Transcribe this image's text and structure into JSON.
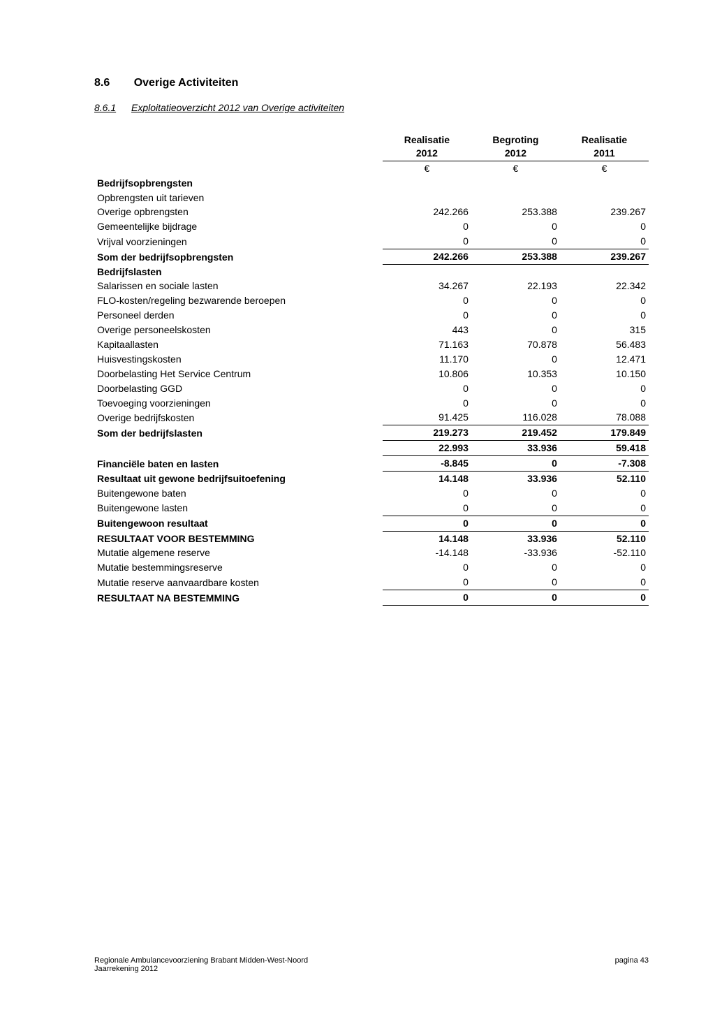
{
  "section": {
    "number": "8.6",
    "title": "Overige Activiteiten"
  },
  "subsection": {
    "number": "8.6.1",
    "title": "Exploitatieoverzicht 2012 van Overige activiteiten"
  },
  "columns": [
    {
      "head1": "Realisatie",
      "head2": "2012",
      "currency": "€"
    },
    {
      "head1": "Begroting",
      "head2": "2012",
      "currency": "€"
    },
    {
      "head1": "Realisatie",
      "head2": "2011",
      "currency": "€"
    }
  ],
  "labels": {
    "bedrijfsopbrengsten": "Bedrijfsopbrengsten",
    "opbr_tarieven": "Opbrengsten uit tarieven",
    "overige_opbrengsten": "Overige opbrengsten",
    "gemeentelijke_bijdrage": "Gemeentelijke bijdrage",
    "vrijval_voorz": "Vrijval voorzieningen",
    "som_opbrengsten": "Som der bedrijfsopbrengsten",
    "bedrijfslasten": "Bedrijfslasten",
    "salarissen": "Salarissen en sociale lasten",
    "flo": "FLO-kosten/regeling bezwarende beroepen",
    "personeel_derden": "Personeel derden",
    "overige_personeel": "Overige personeelskosten",
    "kapitaallasten": "Kapitaallasten",
    "huisvest": "Huisvestingskosten",
    "doorbel_hsc": "Doorbelasting Het Service Centrum",
    "doorbel_ggd": "Doorbelasting GGD",
    "toevoeging_voorz": "Toevoeging voorzieningen",
    "overige_bedrijfskosten": "Overige bedrijfskosten",
    "som_lasten": "Som der bedrijfslasten",
    "fin_baten": "Financiële baten en lasten",
    "resultaat_gewone": "Resultaat uit gewone bedrijfsuitoefening",
    "buitengewone_baten": "Buitengewone baten",
    "buitengewone_lasten": "Buitengewone lasten",
    "buitengewoon_resultaat": "Buitengewoon resultaat",
    "resultaat_voor": "RESULTAAT VOOR BESTEMMING",
    "mut_alg": "Mutatie algemene reserve",
    "mut_best": "Mutatie bestemmingsreserve",
    "mut_aanv": "Mutatie reserve aanvaardbare kosten",
    "resultaat_na": "RESULTAAT NA BESTEMMING"
  },
  "values": {
    "overige_opbrengsten": [
      "242.266",
      "253.388",
      "239.267"
    ],
    "gemeentelijke_bijdrage": [
      "0",
      "0",
      "0"
    ],
    "vrijval_voorz": [
      "0",
      "0",
      "0"
    ],
    "som_opbrengsten": [
      "242.266",
      "253.388",
      "239.267"
    ],
    "salarissen": [
      "34.267",
      "22.193",
      "22.342"
    ],
    "flo": [
      "0",
      "0",
      "0"
    ],
    "personeel_derden": [
      "0",
      "0",
      "0"
    ],
    "overige_personeel": [
      "443",
      "0",
      "315"
    ],
    "kapitaallasten": [
      "71.163",
      "70.878",
      "56.483"
    ],
    "huisvest": [
      "11.170",
      "0",
      "12.471"
    ],
    "doorbel_hsc": [
      "10.806",
      "10.353",
      "10.150"
    ],
    "doorbel_ggd": [
      "0",
      "0",
      "0"
    ],
    "toevoeging_voorz": [
      "0",
      "0",
      "0"
    ],
    "overige_bedrijfskosten": [
      "91.425",
      "116.028",
      "78.088"
    ],
    "som_lasten": [
      "219.273",
      "219.452",
      "179.849"
    ],
    "subtotal_diff": [
      "22.993",
      "33.936",
      "59.418"
    ],
    "fin_baten": [
      "-8.845",
      "0",
      "-7.308"
    ],
    "resultaat_gewone": [
      "14.148",
      "33.936",
      "52.110"
    ],
    "buitengewone_baten": [
      "0",
      "0",
      "0"
    ],
    "buitengewone_lasten": [
      "0",
      "0",
      "0"
    ],
    "buitengewoon_resultaat": [
      "0",
      "0",
      "0"
    ],
    "resultaat_voor": [
      "14.148",
      "33.936",
      "52.110"
    ],
    "mut_alg": [
      "-14.148",
      "-33.936",
      "-52.110"
    ],
    "mut_best": [
      "0",
      "0",
      "0"
    ],
    "mut_aanv": [
      "0",
      "0",
      "0"
    ],
    "resultaat_na": [
      "0",
      "0",
      "0"
    ]
  },
  "footer": {
    "org_line1": "Regionale Ambulancevoorziening Brabant Midden-West-Noord",
    "org_line2": "Jaarrekening 2012",
    "page": "pagina 43"
  }
}
